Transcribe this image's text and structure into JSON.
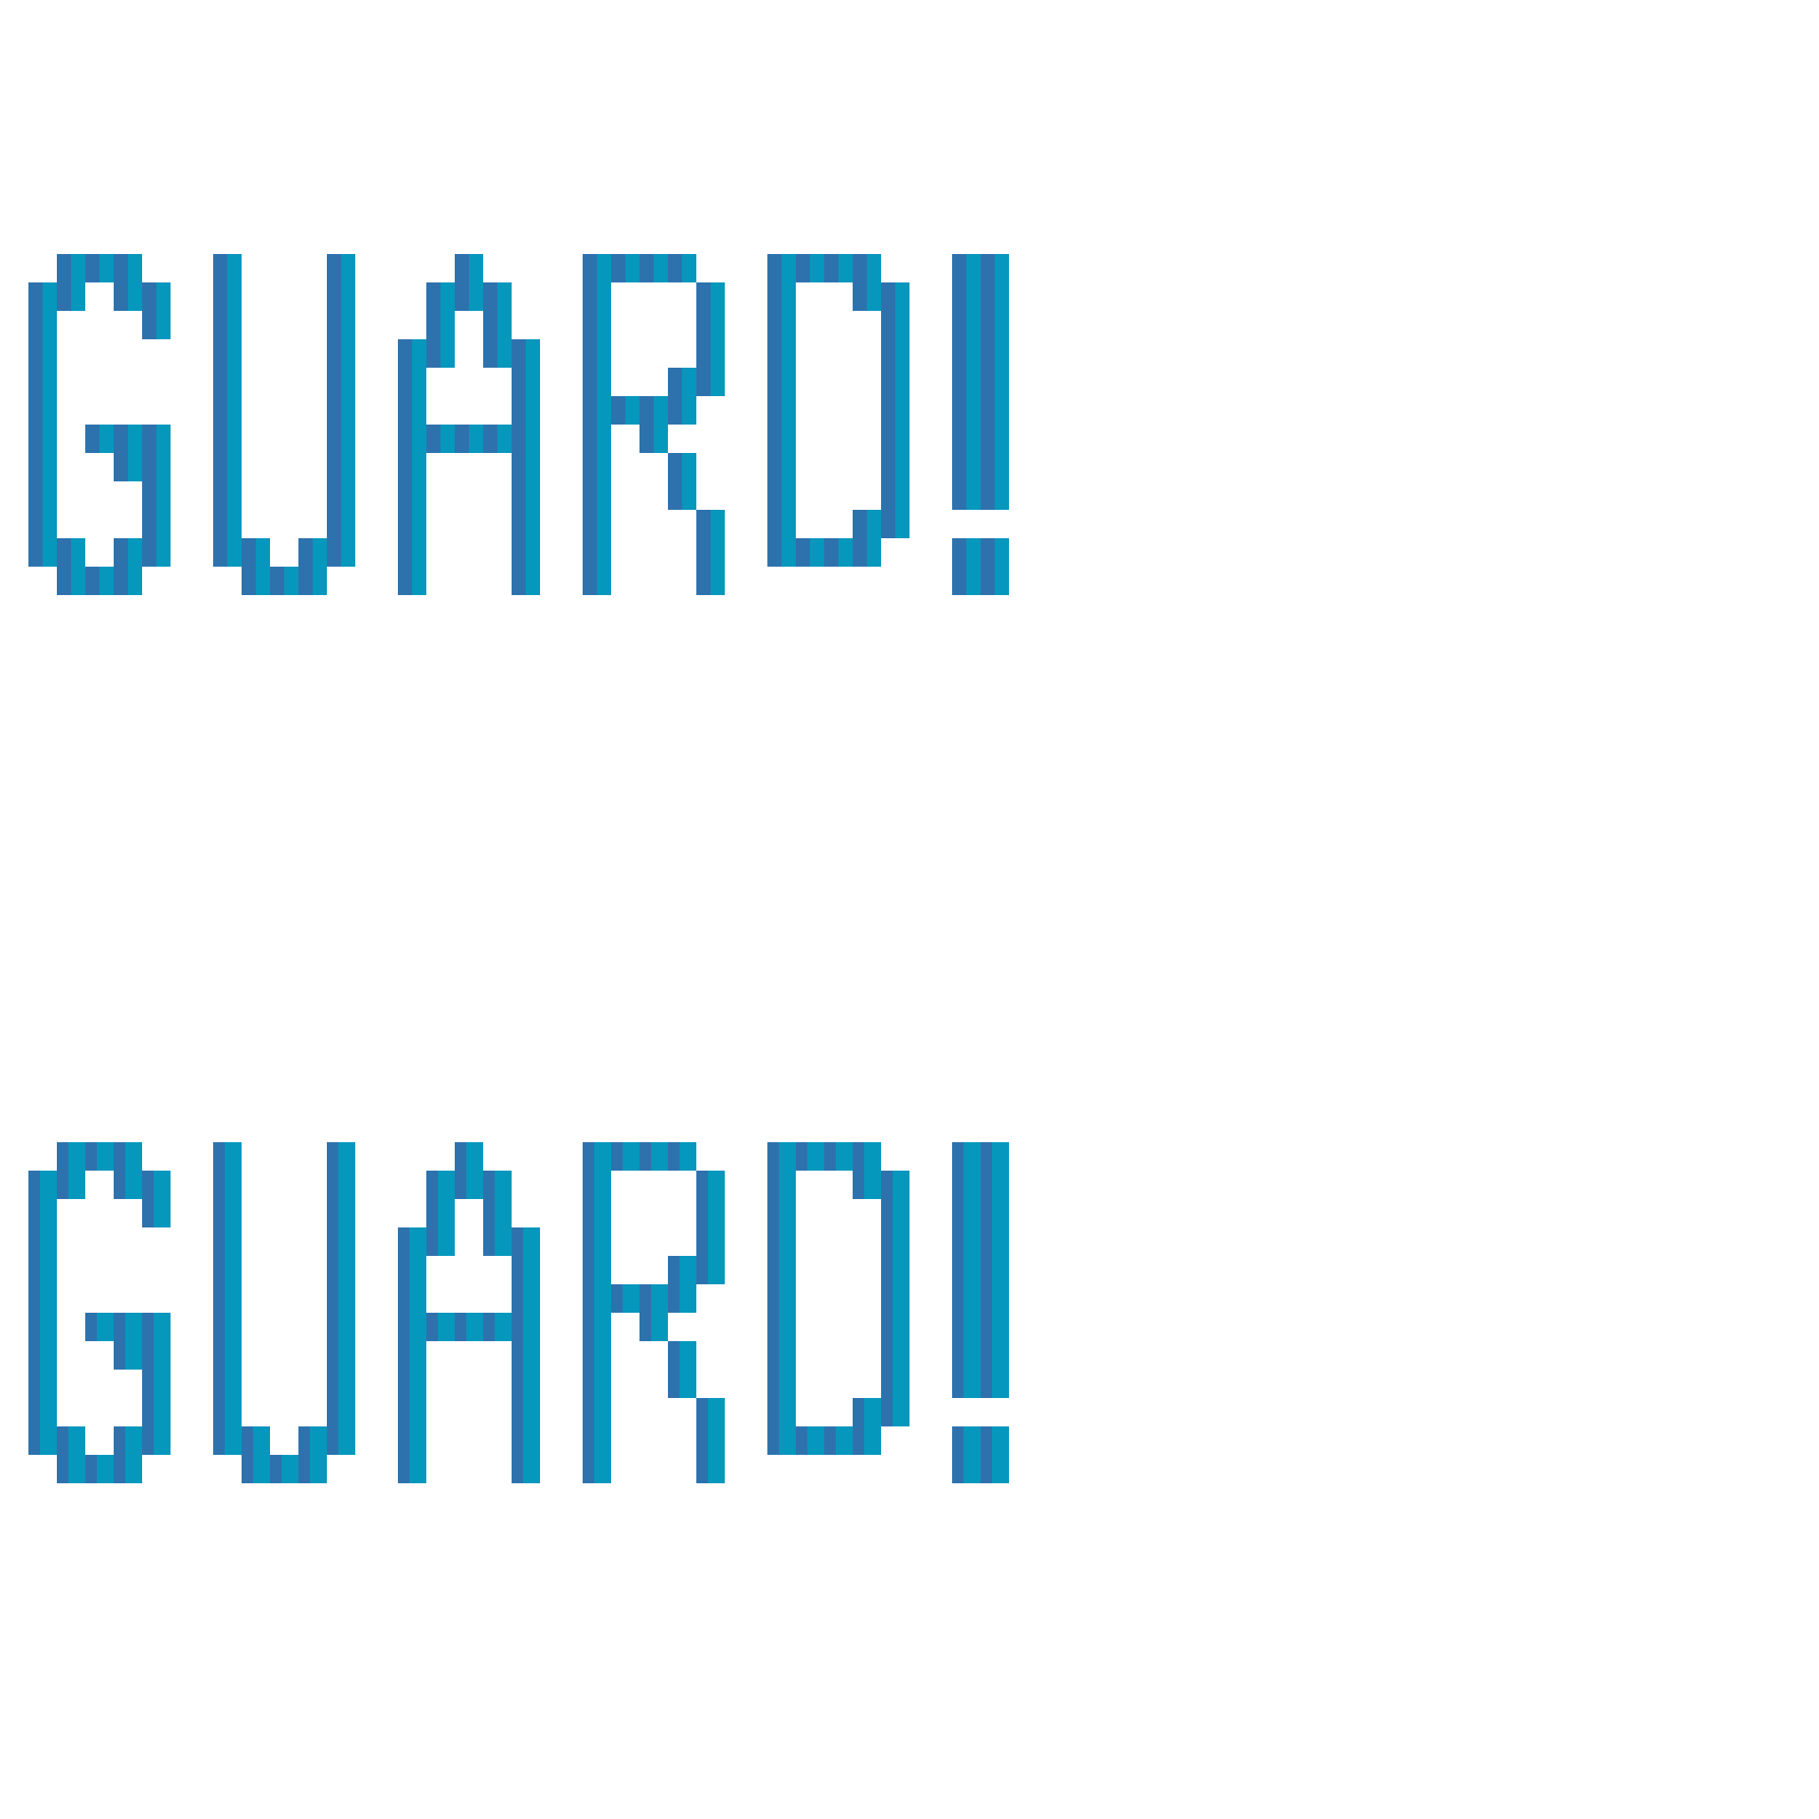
{
  "artwork": {
    "word": "GUARD!",
    "colors": {
      "background": "#ffffff",
      "shadow": "#2d72ad",
      "face": "#0697bd"
    },
    "variants": [
      {
        "name": "outline",
        "style": "outline"
      },
      {
        "name": "solid",
        "style": "filled"
      }
    ]
  }
}
